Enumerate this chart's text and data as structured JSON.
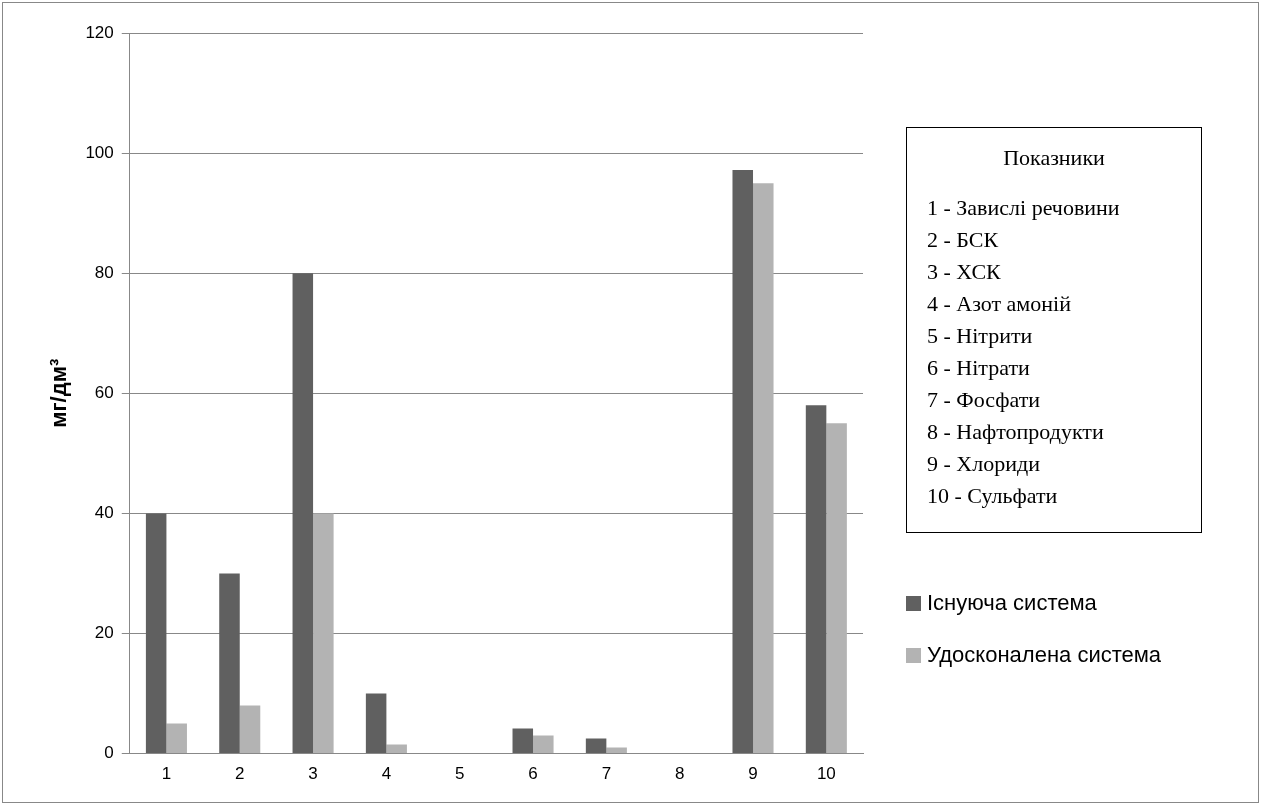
{
  "chart_data": {
    "type": "bar",
    "ylabel": "мг/дм³",
    "categories": [
      "1",
      "2",
      "3",
      "4",
      "5",
      "6",
      "7",
      "8",
      "9",
      "10"
    ],
    "series": [
      {
        "name": "Існуюча система",
        "color": "#606060",
        "values": [
          40,
          30,
          80,
          10,
          null,
          4.2,
          2.5,
          null,
          97.2,
          58
        ]
      },
      {
        "name": "Удосконалена система",
        "color": "#b3b3b3",
        "values": [
          5,
          8,
          40,
          1.5,
          null,
          3,
          1,
          null,
          95,
          55
        ]
      }
    ],
    "ylim": [
      0,
      120
    ],
    "yticks": [
      0,
      20,
      40,
      60,
      80,
      100,
      120
    ],
    "grid": "y",
    "legend": "right",
    "annotations": [
      "Показники",
      "1 - Завислі речовини",
      "2 - БСК",
      "3 - ХСК",
      "4 - Азот амоній",
      "5 - Нітрити",
      "6 - Нітрати",
      "7 - Фосфати",
      "8 - Нафтопродукти",
      "9 - Хлориди",
      "10 - Сульфати"
    ]
  }
}
